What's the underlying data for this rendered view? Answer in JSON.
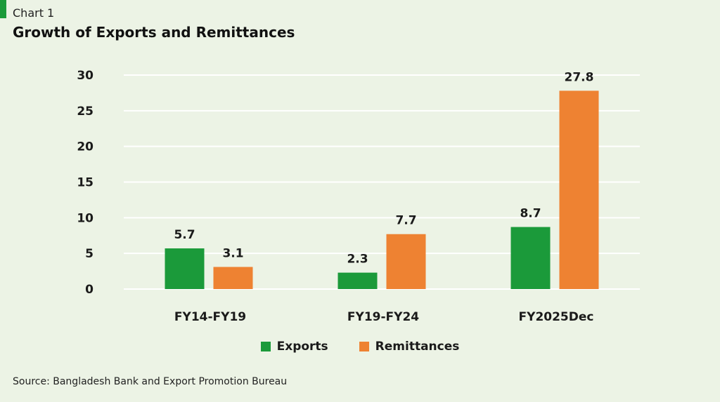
{
  "header": {
    "chart_label": "Chart 1",
    "title": "Growth of Exports and Remittances"
  },
  "colors": {
    "background": "#ecf3e5",
    "accent": "#1b9a3a",
    "exports": "#1b9a3a",
    "remittances": "#ee8232",
    "gridline": "#ffffff"
  },
  "chart_data": {
    "type": "bar",
    "title": "Growth of Exports and Remittances",
    "categories": [
      "FY14-FY19",
      "FY19-FY24",
      "FY2025Dec"
    ],
    "series": [
      {
        "name": "Exports",
        "values": [
          5.7,
          2.3,
          8.7
        ]
      },
      {
        "name": "Remittances",
        "values": [
          3.1,
          7.7,
          27.8
        ]
      }
    ],
    "data_labels": [
      [
        "5.7",
        "2.3",
        "8.7"
      ],
      [
        "3.1",
        "7.7",
        "27.8"
      ]
    ],
    "yticks": [
      0,
      5,
      10,
      15,
      20,
      25,
      30
    ],
    "ylim": [
      0,
      30
    ],
    "grid": true,
    "legend_position": "bottom-center"
  },
  "legend": {
    "exports_label": "Exports",
    "remittances_label": "Remittances"
  },
  "footer": {
    "source": "Source: Bangladesh Bank and Export Promotion Bureau"
  }
}
